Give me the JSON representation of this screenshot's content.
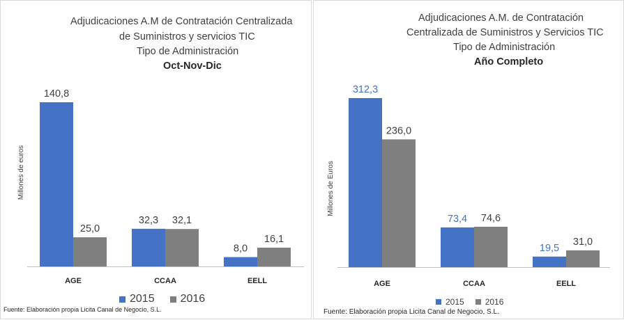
{
  "colors": {
    "s2015": "#4472c4",
    "s2016": "#7f7f7f",
    "axis": "#bfbfbf"
  },
  "chart_data": [
    {
      "type": "bar",
      "title_lines": [
        "Adjudicaciones A.M de Contratación Centralizada",
        "de Suministros y servicios TIC",
        "Tipo de Administración"
      ],
      "period": "Oct-Nov-Dic",
      "ylabel": "Millones de euros",
      "categories": [
        "AGE",
        "CCAA",
        "EELL"
      ],
      "series": [
        {
          "name": "2015",
          "values": [
            140.8,
            32.3,
            8.0
          ],
          "labels": [
            "140,8",
            "32,3",
            "8,0"
          ]
        },
        {
          "name": "2016",
          "values": [
            25.0,
            32.1,
            16.1
          ],
          "labels": [
            "25,0",
            "32,1",
            "16,1"
          ]
        }
      ],
      "ylim": [
        0,
        140.8
      ],
      "grid": false,
      "legend": "bottom",
      "source": "Fuente: Elaboración propia Licita Canal de Negocio, S.L."
    },
    {
      "type": "bar",
      "title_lines": [
        "Adjudicaciones A.M. de Contratación",
        "Centralizada de Suministros y Servicios TIC",
        "Tipo de Administración"
      ],
      "period": "Año Completo",
      "ylabel": "Millones de Euros",
      "categories": [
        "AGE",
        "CCAA",
        "EELL"
      ],
      "series": [
        {
          "name": "2015",
          "values": [
            312.3,
            73.4,
            19.5
          ],
          "labels": [
            "312,3",
            "73,4",
            "19,5"
          ]
        },
        {
          "name": "2016",
          "values": [
            236.0,
            74.6,
            31.0
          ],
          "labels": [
            "236,0",
            "74,6",
            "31,0"
          ]
        }
      ],
      "ylim": [
        0,
        312.3
      ],
      "grid": false,
      "legend": "bottom",
      "source": "Fuente: Elaboración propia Licita Canal de Negocio, S.L."
    }
  ]
}
